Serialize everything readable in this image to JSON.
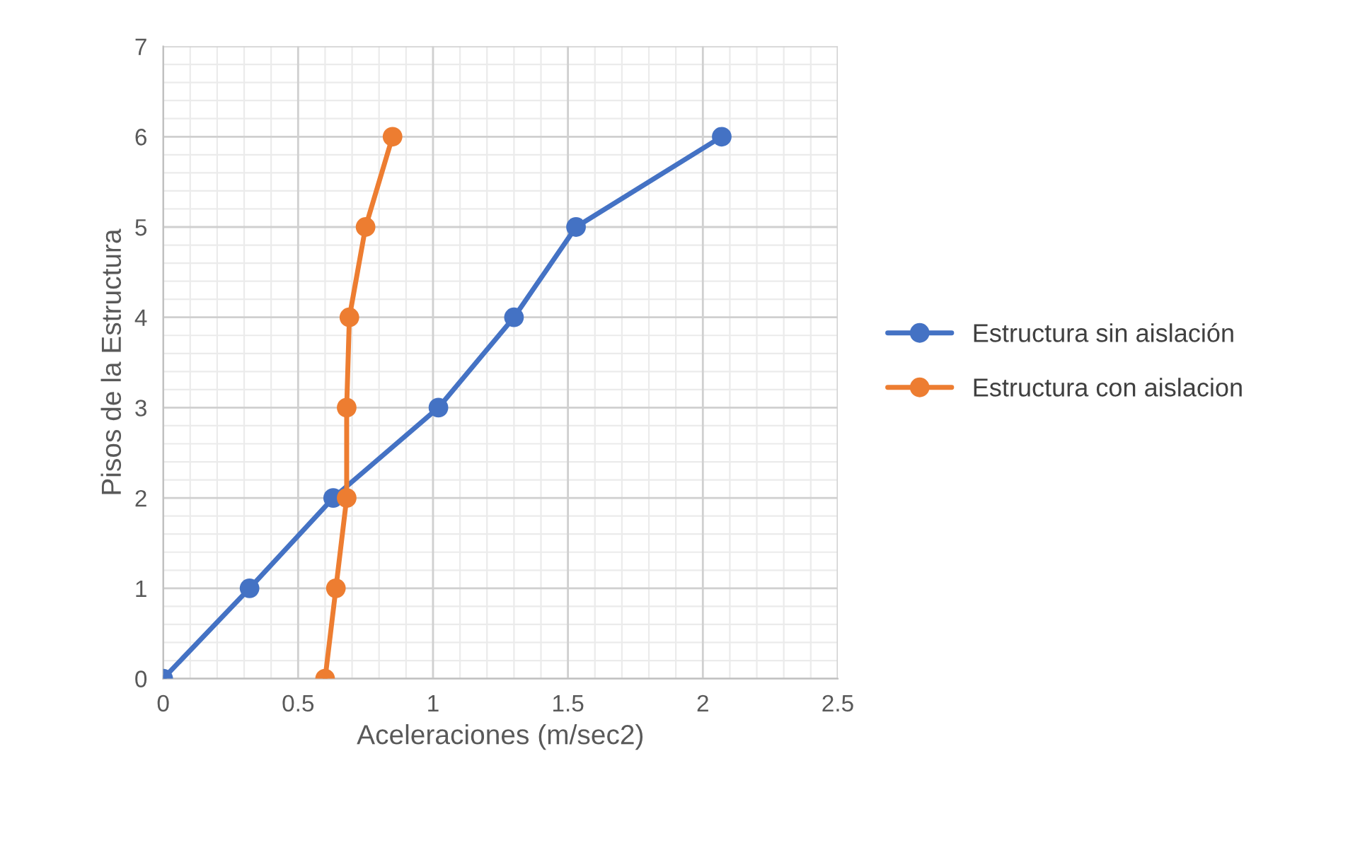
{
  "chart_data": {
    "type": "line",
    "xlabel": "Aceleraciones (m/sec2)",
    "ylabel": "Pisos de la Estructura",
    "series": [
      {
        "name": "Estructura sin aislación",
        "color": "#4472c4",
        "x": [
          0,
          0.32,
          0.63,
          1.02,
          1.3,
          1.53,
          2.07
        ],
        "values": [
          0,
          1,
          2,
          3,
          4,
          5,
          6
        ]
      },
      {
        "name": "Estructura con aislacion",
        "color": "#ed7d31",
        "x": [
          0.6,
          0.64,
          0.68,
          0.68,
          0.69,
          0.75,
          0.85
        ],
        "values": [
          0,
          1,
          2,
          3,
          4,
          5,
          6
        ]
      }
    ],
    "xlim": [
      0,
      2.5
    ],
    "xticks": [
      0,
      0.5,
      1,
      1.5,
      2,
      2.5
    ],
    "ylim": [
      0,
      7
    ],
    "yticks": [
      0,
      1,
      2,
      3,
      4,
      5,
      6,
      7
    ],
    "grid": true,
    "legend": "right",
    "marker": "circle",
    "line_style": "solid"
  }
}
